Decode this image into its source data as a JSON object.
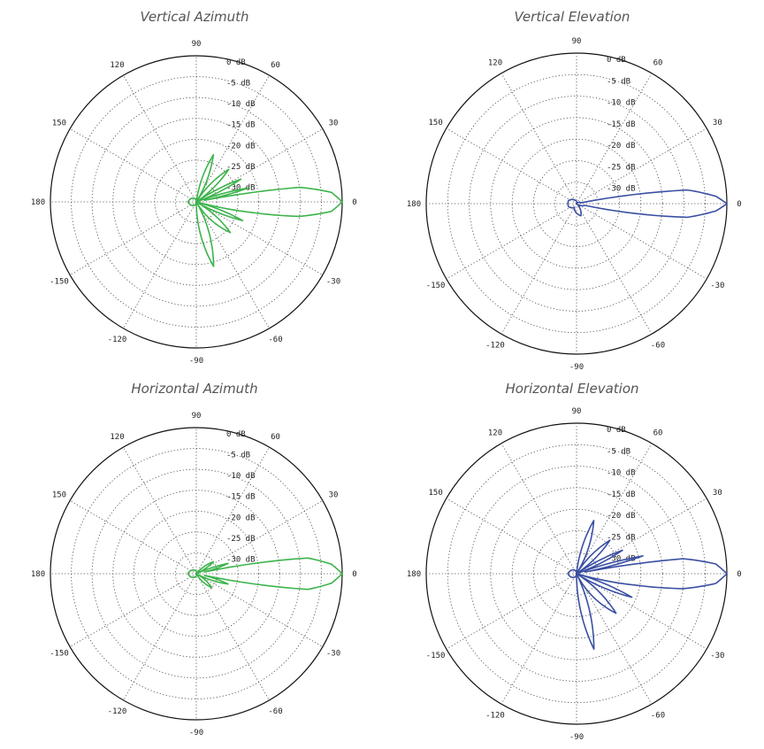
{
  "chart_data": [
    {
      "type": "polar",
      "title": "Vertical Azimuth",
      "line_color": "#3cb44b",
      "angle_ticks": [
        "0",
        "30",
        "60",
        "90",
        "120",
        "150",
        "180",
        "-150",
        "-120",
        "-90",
        "-60",
        "-30"
      ],
      "ring_labels": [
        "0 dB",
        "-5 dB",
        "-10 dB",
        "-15 dB",
        "-20 dB",
        "-25 dB",
        "-30 dB"
      ],
      "r_range_db": [
        -35,
        0
      ],
      "grid": true,
      "series": [
        {
          "points": [
            {
              "angle_deg": 0,
              "gain_db": 0
            },
            {
              "angle_deg": 4,
              "gain_db": -2.5
            },
            {
              "angle_deg": 8,
              "gain_db": -10
            },
            {
              "angle_deg": 11,
              "gain_db": -33
            },
            {
              "angle_deg": 15,
              "gain_db": -22
            },
            {
              "angle_deg": 20,
              "gain_db": -35
            },
            {
              "angle_deg": 27,
              "gain_db": -23
            },
            {
              "angle_deg": 34,
              "gain_db": -35
            },
            {
              "angle_deg": 45,
              "gain_db": -24
            },
            {
              "angle_deg": 58,
              "gain_db": -35
            },
            {
              "angle_deg": 70,
              "gain_db": -23
            },
            {
              "angle_deg": 82,
              "gain_db": -35
            },
            {
              "angle_deg": 120,
              "gain_db": -34
            },
            {
              "angle_deg": 180,
              "gain_db": -33
            },
            {
              "angle_deg": 240,
              "gain_db": -34
            },
            {
              "angle_deg": 270,
              "gain_db": -35
            },
            {
              "angle_deg": 285,
              "gain_db": -19
            },
            {
              "angle_deg": 300,
              "gain_db": -35
            },
            {
              "angle_deg": 318,
              "gain_db": -24
            },
            {
              "angle_deg": 330,
              "gain_db": -35
            },
            {
              "angle_deg": 338,
              "gain_db": -23
            },
            {
              "angle_deg": 345,
              "gain_db": -35
            },
            {
              "angle_deg": 349,
              "gain_db": -22
            },
            {
              "angle_deg": 352,
              "gain_db": -10
            },
            {
              "angle_deg": 356,
              "gain_db": -2.5
            },
            {
              "angle_deg": 360,
              "gain_db": 0
            }
          ]
        }
      ]
    },
    {
      "type": "polar",
      "title": "Vertical Elevation",
      "line_color": "#3a4fa3",
      "angle_ticks": [
        "0",
        "30",
        "60",
        "90",
        "120",
        "150",
        "180",
        "-150",
        "-120",
        "-90",
        "-60",
        "-30"
      ],
      "ring_labels": [
        "0 dB",
        "-5 dB",
        "-10 dB",
        "-15 dB",
        "-20 dB",
        "-25 dB",
        "-30 dB"
      ],
      "r_range_db": [
        -35,
        0
      ],
      "grid": true,
      "series": [
        {
          "points": [
            {
              "angle_deg": 0,
              "gain_db": 0
            },
            {
              "angle_deg": 3,
              "gain_db": -2.5
            },
            {
              "angle_deg": 7,
              "gain_db": -9
            },
            {
              "angle_deg": 11,
              "gain_db": -34
            },
            {
              "angle_deg": 60,
              "gain_db": -35
            },
            {
              "angle_deg": 120,
              "gain_db": -34
            },
            {
              "angle_deg": 160,
              "gain_db": -33
            },
            {
              "angle_deg": 200,
              "gain_db": -33
            },
            {
              "angle_deg": 240,
              "gain_db": -34
            },
            {
              "angle_deg": 290,
              "gain_db": -32
            },
            {
              "angle_deg": 320,
              "gain_db": -35
            },
            {
              "angle_deg": 348,
              "gain_db": -33
            },
            {
              "angle_deg": 353,
              "gain_db": -9
            },
            {
              "angle_deg": 357,
              "gain_db": -2.5
            },
            {
              "angle_deg": 360,
              "gain_db": 0
            }
          ]
        }
      ]
    },
    {
      "type": "polar",
      "title": "Horizontal Azimuth",
      "line_color": "#3cb44b",
      "angle_ticks": [
        "0",
        "30",
        "60",
        "90",
        "120",
        "150",
        "180",
        "-150",
        "-120",
        "-90",
        "-60",
        "-30"
      ],
      "ring_labels": [
        "0 dB",
        "-5 dB",
        "-10 dB",
        "-15 dB",
        "-20 dB",
        "-25 dB",
        "-30 dB"
      ],
      "r_range_db": [
        -35,
        0
      ],
      "grid": true,
      "series": [
        {
          "points": [
            {
              "angle_deg": 0,
              "gain_db": 0
            },
            {
              "angle_deg": 4,
              "gain_db": -2.5
            },
            {
              "angle_deg": 8,
              "gain_db": -8
            },
            {
              "angle_deg": 12,
              "gain_db": -33
            },
            {
              "angle_deg": 18,
              "gain_db": -27
            },
            {
              "angle_deg": 24,
              "gain_db": -35
            },
            {
              "angle_deg": 35,
              "gain_db": -30
            },
            {
              "angle_deg": 50,
              "gain_db": -35
            },
            {
              "angle_deg": 120,
              "gain_db": -34
            },
            {
              "angle_deg": 180,
              "gain_db": -33
            },
            {
              "angle_deg": 240,
              "gain_db": -34
            },
            {
              "angle_deg": 300,
              "gain_db": -35
            },
            {
              "angle_deg": 318,
              "gain_db": -30
            },
            {
              "angle_deg": 332,
              "gain_db": -35
            },
            {
              "angle_deg": 342,
              "gain_db": -27
            },
            {
              "angle_deg": 348,
              "gain_db": -33
            },
            {
              "angle_deg": 352,
              "gain_db": -8
            },
            {
              "angle_deg": 356,
              "gain_db": -2.5
            },
            {
              "angle_deg": 360,
              "gain_db": 0
            }
          ]
        }
      ]
    },
    {
      "type": "polar",
      "title": "Horizontal Elevation",
      "line_color": "#3a4fa3",
      "angle_ticks": [
        "0",
        "30",
        "60",
        "90",
        "120",
        "150",
        "180",
        "-150",
        "-120",
        "-90",
        "-60",
        "-30"
      ],
      "ring_labels": [
        "0 dB",
        "-5 dB",
        "-10 dB",
        "-15 dB",
        "-20 dB",
        "-25 dB",
        "-30 dB"
      ],
      "r_range_db": [
        -35,
        0
      ],
      "grid": true,
      "series": [
        {
          "points": [
            {
              "angle_deg": 0,
              "gain_db": 0
            },
            {
              "angle_deg": 4,
              "gain_db": -2.5
            },
            {
              "angle_deg": 8,
              "gain_db": -10
            },
            {
              "angle_deg": 11,
              "gain_db": -33
            },
            {
              "angle_deg": 15,
              "gain_db": -19
            },
            {
              "angle_deg": 20,
              "gain_db": -35
            },
            {
              "angle_deg": 27,
              "gain_db": -23
            },
            {
              "angle_deg": 34,
              "gain_db": -35
            },
            {
              "angle_deg": 45,
              "gain_db": -24
            },
            {
              "angle_deg": 58,
              "gain_db": -35
            },
            {
              "angle_deg": 72,
              "gain_db": -22
            },
            {
              "angle_deg": 84,
              "gain_db": -35
            },
            {
              "angle_deg": 120,
              "gain_db": -34
            },
            {
              "angle_deg": 180,
              "gain_db": -33
            },
            {
              "angle_deg": 240,
              "gain_db": -34
            },
            {
              "angle_deg": 270,
              "gain_db": -35
            },
            {
              "angle_deg": 283,
              "gain_db": -17
            },
            {
              "angle_deg": 296,
              "gain_db": -35
            },
            {
              "angle_deg": 315,
              "gain_db": -22
            },
            {
              "angle_deg": 328,
              "gain_db": -35
            },
            {
              "angle_deg": 337,
              "gain_db": -21
            },
            {
              "angle_deg": 344,
              "gain_db": -35
            },
            {
              "angle_deg": 349,
              "gain_db": -21
            },
            {
              "angle_deg": 352,
              "gain_db": -10
            },
            {
              "angle_deg": 356,
              "gain_db": -2.5
            },
            {
              "angle_deg": 360,
              "gain_db": 0
            }
          ]
        }
      ]
    }
  ]
}
